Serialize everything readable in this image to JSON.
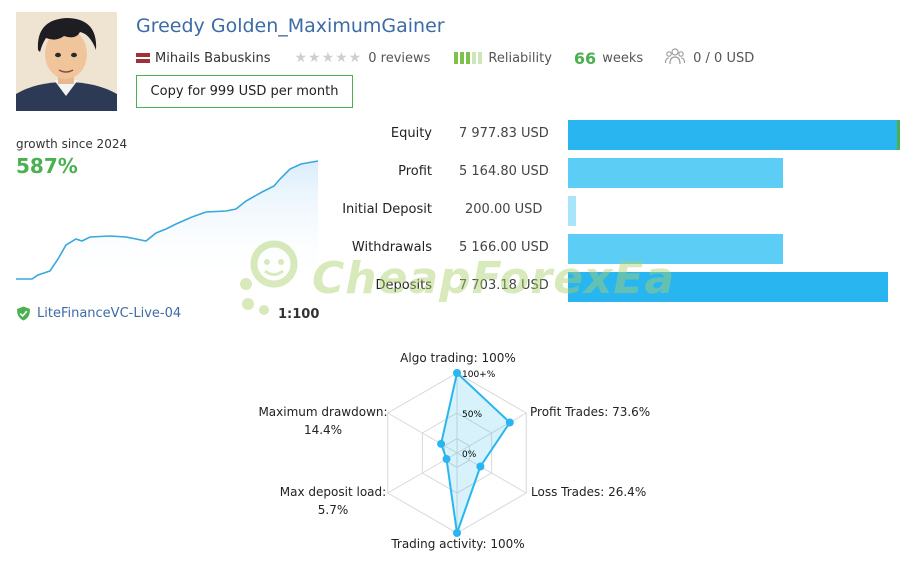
{
  "header": {
    "title": "Greedy Golden_MaximumGainer",
    "author": "Mihails Babuskins",
    "reviews": "0 reviews",
    "reliability_label": "Reliability",
    "weeks_value": "66",
    "weeks_label": "weeks",
    "subscribers": "0 / 0 USD",
    "copy_button": "Copy for 999 USD per month"
  },
  "growth": {
    "label": "growth since 2024",
    "value": "587%",
    "broker": "LiteFinanceVC-Live-04",
    "leverage": "1:100"
  },
  "stats": [
    {
      "label": "Equity",
      "value": "7 977.83 USD",
      "fraction": 1.0,
      "color": "#29b6f0"
    },
    {
      "label": "Profit",
      "value": "5 164.80 USD",
      "fraction": 0.647,
      "color": "#5ccdf5"
    },
    {
      "label": "Initial Deposit",
      "value": "200.00 USD",
      "fraction": 0.025,
      "color": "#a8e4fa"
    },
    {
      "label": "Withdrawals",
      "value": "5 166.00 USD",
      "fraction": 0.647,
      "color": "#5ccdf5"
    },
    {
      "label": "Deposits",
      "value": "7 703.18 USD",
      "fraction": 0.965,
      "color": "#29b6f0"
    }
  ],
  "watermark": "CheapForexEa",
  "radar": {
    "ticks": [
      "100+%",
      "50%",
      "0%"
    ],
    "axes": [
      {
        "label": "Algo trading: 100%",
        "value": 1.0
      },
      {
        "label": "Profit Trades: 73.6%",
        "value": 0.736
      },
      {
        "label": "Loss Trades: 26.4%",
        "value": 0.264
      },
      {
        "label": "Trading activity: 100%",
        "value": 1.0
      },
      {
        "label": "Max deposit load:",
        "sub": "5.7%",
        "value": 0.057
      },
      {
        "label": "Maximum drawdown:",
        "sub": "14.4%",
        "value": 0.144
      }
    ]
  },
  "colors": {
    "accent_green": "#4caf50",
    "link_blue": "#3d6ba6",
    "chart_blue": "#29b6f0"
  }
}
